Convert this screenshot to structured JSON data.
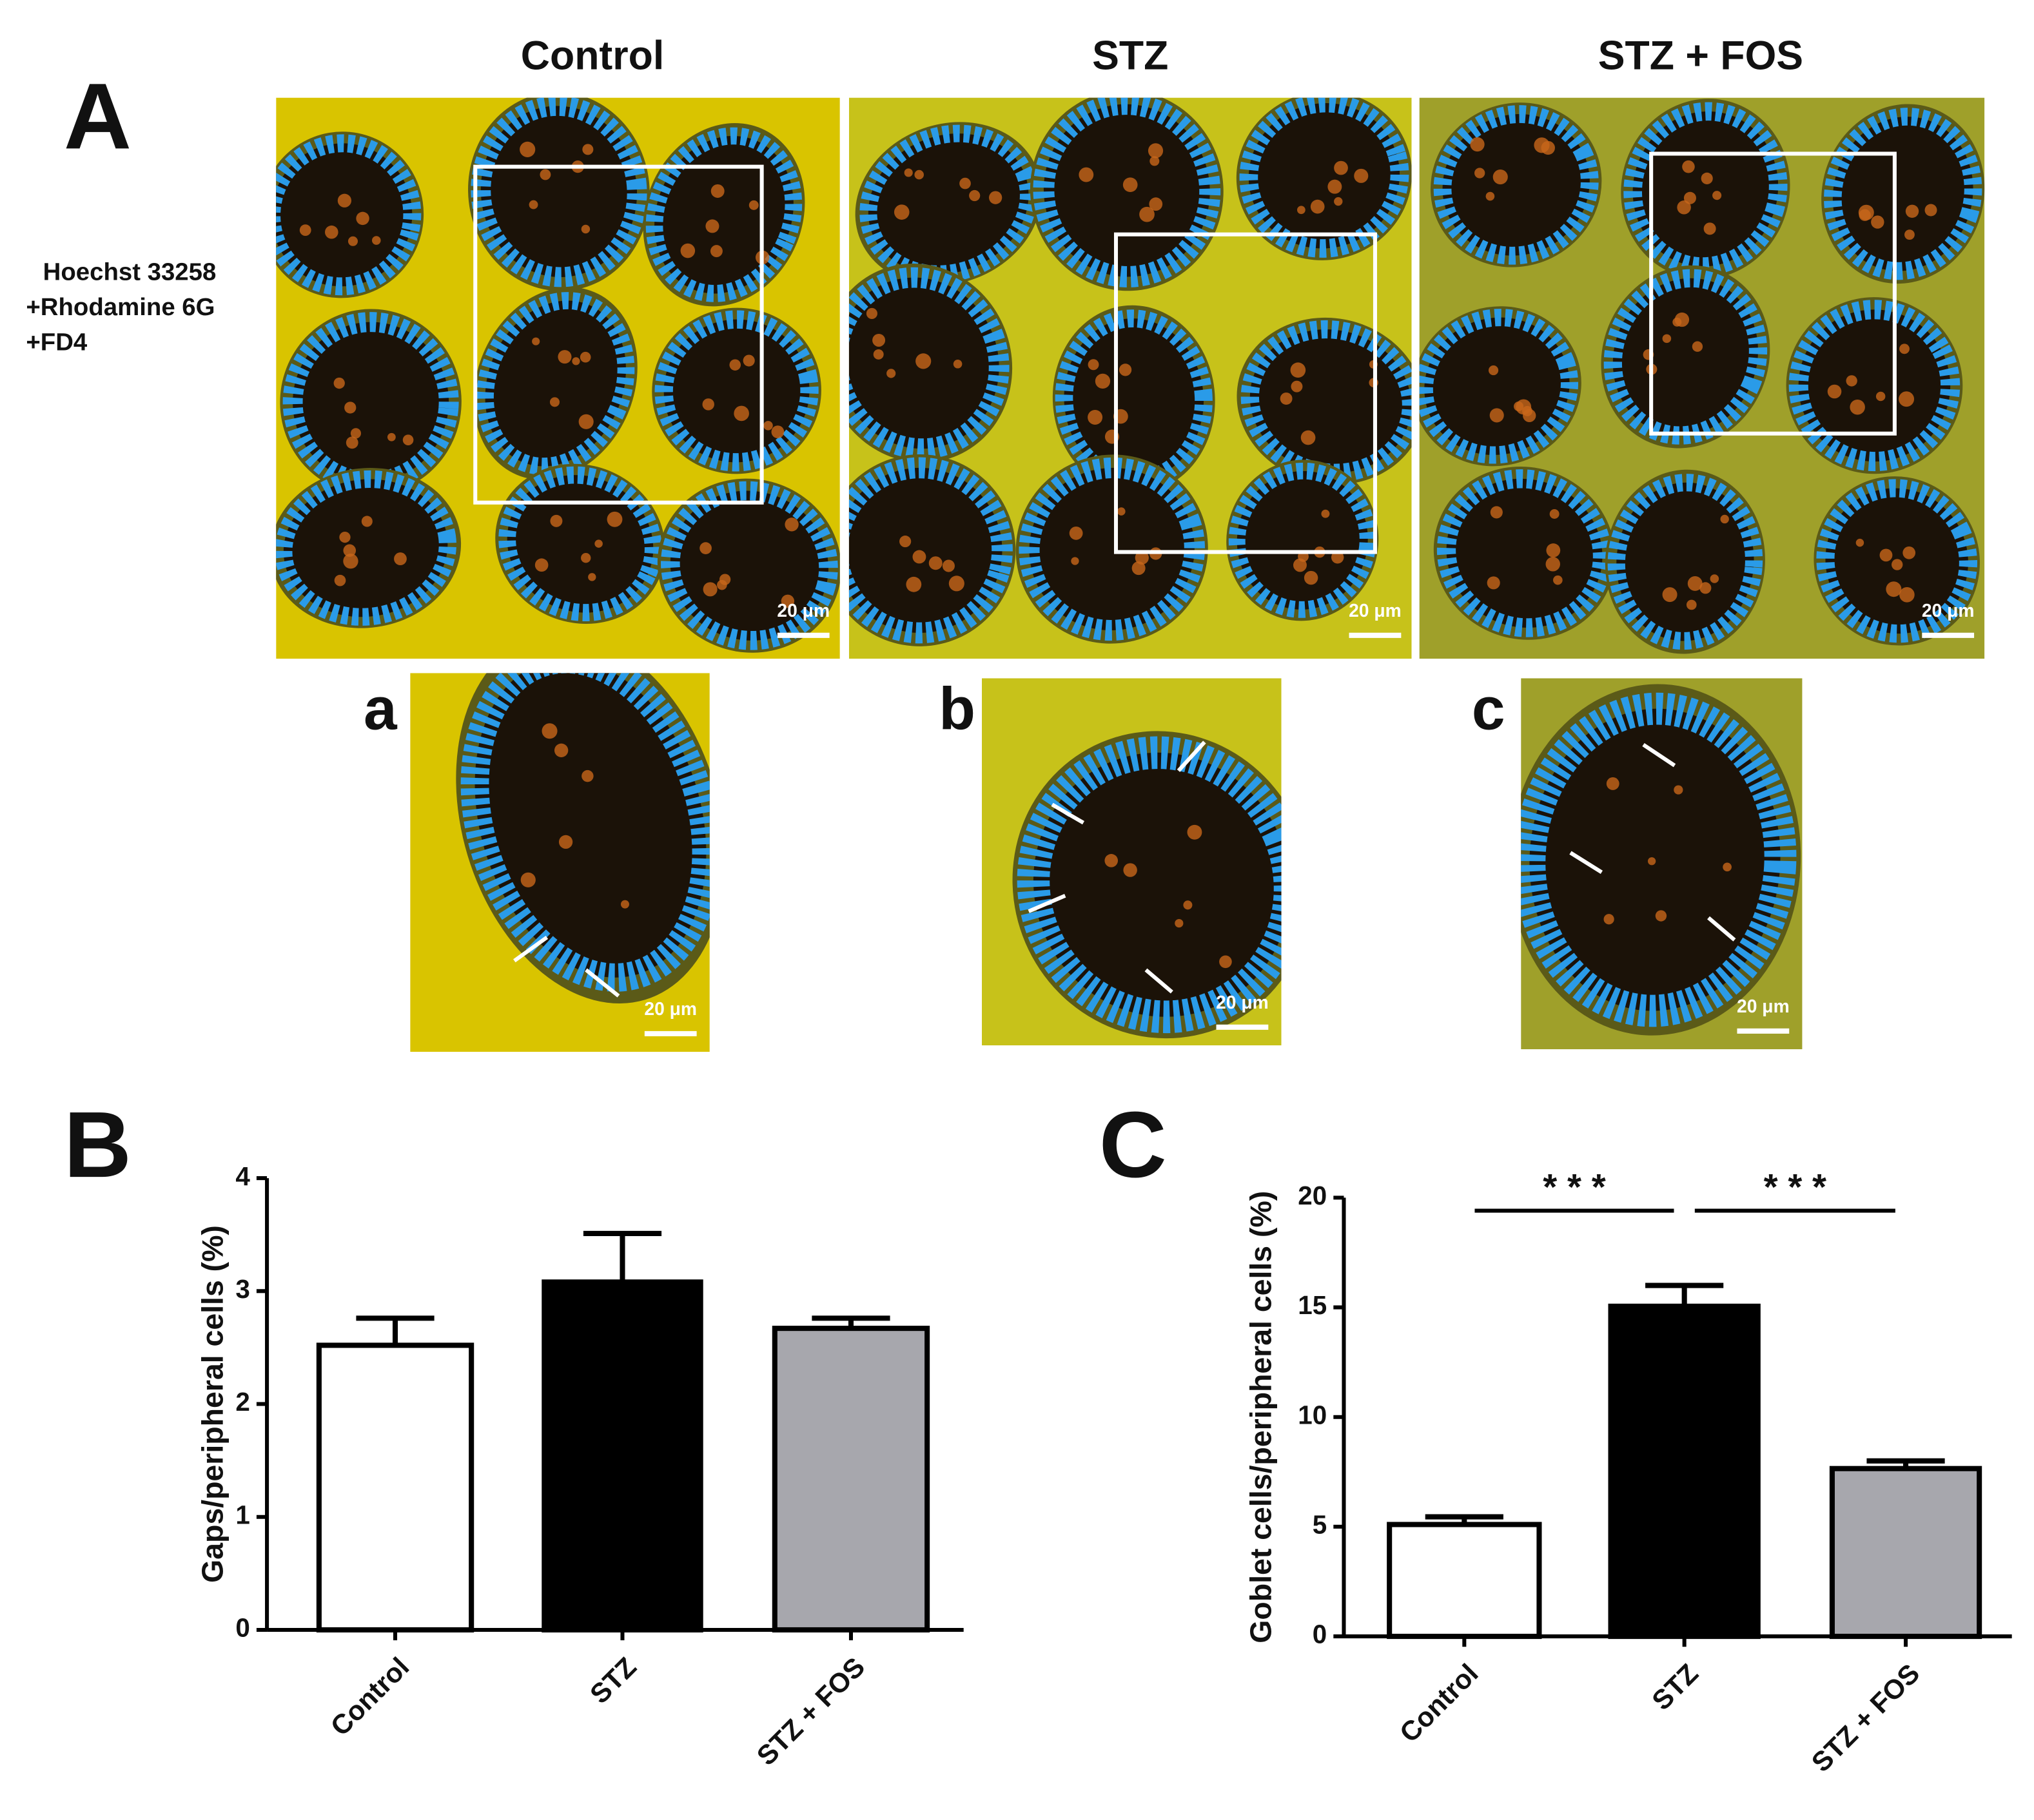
{
  "figure": {
    "panel_label": "A",
    "columns": [
      "Control",
      "STZ",
      "STZ + FOS"
    ],
    "stain": [
      "Hoechst 33258",
      "+Rhodamine 6G",
      "+FD4"
    ],
    "insets": [
      "a",
      "b",
      "c"
    ],
    "scale_bar": "20 μm"
  },
  "chart_data": [
    {
      "type": "bar",
      "panel_label": "B",
      "ylabel": "Gaps/peripheral cells (%)",
      "categories": [
        "Control",
        "STZ",
        "STZ + FOS"
      ],
      "values": [
        2.52,
        3.08,
        2.67
      ],
      "errors": [
        0.24,
        0.43,
        0.09
      ],
      "colors": [
        "#ffffff",
        "#000000",
        "#a7a7ad"
      ],
      "ylim": [
        0,
        4
      ],
      "yticks": [
        0,
        1,
        2,
        3,
        4
      ]
    },
    {
      "type": "bar",
      "panel_label": "C",
      "ylabel": "Goblet cells/peripheral cells (%)",
      "categories": [
        "Control",
        "STZ",
        "STZ + FOS"
      ],
      "values": [
        5.1,
        15.05,
        7.65
      ],
      "errors": [
        0.35,
        0.95,
        0.35
      ],
      "colors": [
        "#ffffff",
        "#000000",
        "#a7a7ad"
      ],
      "ylim": [
        0,
        20
      ],
      "yticks": [
        0,
        5,
        10,
        15,
        20
      ],
      "annotations": [
        {
          "text": "* * *",
          "from": 0,
          "to": 1
        },
        {
          "text": "* * *",
          "from": 1,
          "to": 2
        }
      ]
    }
  ]
}
